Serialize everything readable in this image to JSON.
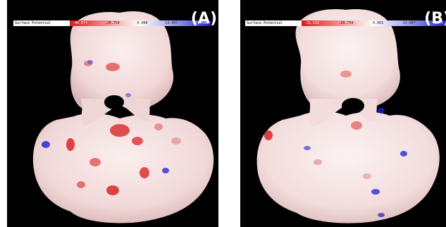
{
  "panels": [
    {
      "label": "(A)",
      "colorbar": {
        "title": "Surface Potential",
        "ticks": [
          "-40.5??",
          "-20.754",
          "0.000",
          "13.997",
          "21.500"
        ],
        "colors": [
          "#d7191c",
          "#f08a8a",
          "#ffffff",
          "#9c9cf0",
          "#1d1dd6"
        ]
      }
    },
    {
      "label": "(B)",
      "colorbar": {
        "title": "Surface Potential",
        "ticks": [
          "-31.532",
          "-20.754",
          "0.003",
          "13.997",
          "21.5"
        ],
        "colors": [
          "#d7191c",
          "#f08a8a",
          "#ffffff",
          "#9c9cf0",
          "#1d1dd6"
        ]
      }
    }
  ],
  "colors": {
    "background": "#000000",
    "surface": "#f3dede",
    "negative": "#d7191c",
    "positive": "#1d1dd6"
  }
}
